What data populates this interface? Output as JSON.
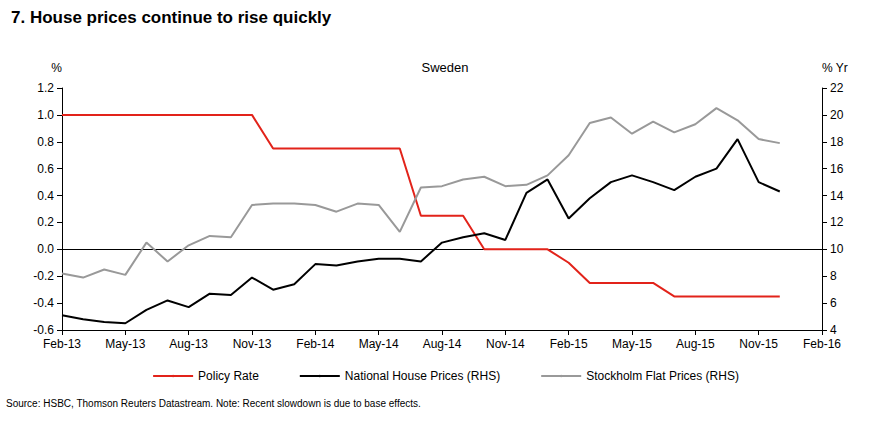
{
  "chart_data": {
    "type": "line",
    "title": "7. House prices continue to rise quickly",
    "subtitle": "Sweden",
    "ylabel": "%",
    "y2label": "% Yr",
    "annotations": [
      "Source: HSBC, Thomson Reuters Datastream. Note: Recent slowdown is due to base effects."
    ],
    "categories": [
      "Feb-13",
      null,
      null,
      "May-13",
      null,
      null,
      "Aug-13",
      null,
      null,
      "Nov-13",
      null,
      null,
      "Feb-14",
      null,
      null,
      "May-14",
      null,
      null,
      "Aug-14",
      null,
      null,
      "Nov-14",
      null,
      null,
      "Feb-15",
      null,
      null,
      "May-15",
      null,
      null,
      "Aug-15",
      null,
      null,
      "Nov-15",
      null,
      null,
      "Feb-16"
    ],
    "series": [
      {
        "name": "Policy Rate",
        "color": "#e2231a",
        "axis": "y",
        "values": [
          1.0,
          1.0,
          1.0,
          1.0,
          1.0,
          1.0,
          1.0,
          1.0,
          1.0,
          1.0,
          0.75,
          0.75,
          0.75,
          0.75,
          0.75,
          0.75,
          0.75,
          0.25,
          0.25,
          0.25,
          0.0,
          0.0,
          0.0,
          0.0,
          -0.1,
          -0.25,
          -0.25,
          -0.25,
          -0.25,
          -0.35,
          -0.35,
          -0.35,
          -0.35,
          -0.35,
          -0.35,
          null,
          null
        ]
      },
      {
        "name": "National House Prices (RHS)",
        "color": "#000000",
        "axis": "y2",
        "values": [
          5.1,
          4.8,
          4.6,
          4.5,
          5.5,
          6.2,
          5.7,
          6.7,
          6.6,
          7.9,
          7.0,
          7.4,
          8.9,
          8.8,
          9.1,
          9.3,
          9.3,
          9.1,
          10.5,
          10.9,
          11.2,
          10.7,
          14.2,
          15.2,
          12.3,
          13.8,
          15.0,
          15.5,
          15.0,
          14.4,
          15.4,
          16.0,
          18.2,
          15.0,
          14.3,
          null,
          null
        ]
      },
      {
        "name": "Stockholm Flat Prices (RHS)",
        "color": "#999999",
        "axis": "y2",
        "values": [
          8.2,
          7.9,
          8.5,
          8.1,
          10.5,
          9.1,
          10.3,
          11.0,
          10.9,
          13.3,
          13.4,
          13.4,
          13.3,
          12.8,
          13.4,
          13.3,
          11.3,
          14.6,
          14.7,
          15.2,
          15.4,
          14.7,
          14.8,
          15.5,
          17.0,
          19.4,
          19.8,
          18.6,
          19.5,
          18.7,
          19.3,
          20.5,
          19.6,
          18.2,
          17.9,
          null,
          null
        ]
      }
    ],
    "ylim": [
      -0.6,
      1.2
    ],
    "yticks": [
      -0.6,
      -0.4,
      -0.2,
      {
        "value": 0,
        "label": "0.0"
      },
      0.2,
      0.4,
      0.6,
      0.8,
      {
        "value": 1,
        "label": "1.0"
      },
      1.2
    ],
    "y2lim": [
      4,
      22
    ],
    "y2ticks": [
      4,
      6,
      8,
      10,
      12,
      14,
      16,
      18,
      20,
      22
    ],
    "legend": "bottom",
    "grid": false
  }
}
